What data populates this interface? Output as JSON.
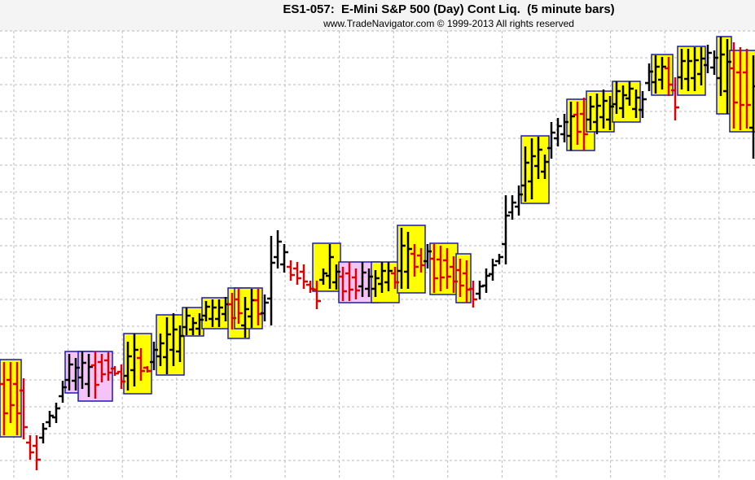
{
  "chart_data": {
    "type": "ohlc",
    "title": "ES1-057:  E-Mini S&P 500 (Day) Cont Liq.  (5 minute bars)",
    "subtitle": "www.TradeNavigator.com © 1999-2013 All rights reserved",
    "up_color": "#000000",
    "down_color": "#e00000",
    "box_border": "#1818c0",
    "ylim": [
      0,
      552
    ],
    "grid": true,
    "bars": [
      [
        118,
        145,
        55,
        82
      ],
      [
        123,
        145,
        70,
        92
      ],
      [
        118,
        145,
        55,
        82
      ],
      [
        110,
        125,
        50,
        65
      ],
      [
        46,
        55,
        25,
        34
      ],
      [
        42,
        55,
        12,
        25
      ],
      [
        52,
        70,
        45,
        63
      ],
      [
        71,
        85,
        65,
        79
      ],
      [
        77,
        95,
        70,
        88
      ],
      [
        103,
        122,
        95,
        114
      ],
      [
        123,
        155,
        110,
        142
      ],
      [
        122,
        150,
        110,
        138
      ],
      [
        126,
        158,
        112,
        144
      ],
      [
        118,
        155,
        102,
        139
      ],
      [
        141,
        158,
        100,
        117
      ],
      [
        145,
        155,
        120,
        130
      ],
      [
        147,
        157,
        122,
        132
      ],
      [
        137,
        140,
        128,
        131
      ],
      [
        133,
        142,
        112,
        121
      ],
      [
        128,
        170,
        110,
        152
      ],
      [
        135,
        180,
        115,
        160
      ],
      [
        150,
        162,
        122,
        134
      ],
      [
        138,
        140,
        132,
        134
      ],
      [
        145,
        170,
        135,
        160
      ],
      [
        152,
        180,
        140,
        168
      ],
      [
        151,
        200,
        130,
        179
      ],
      [
        160,
        205,
        140,
        185
      ],
      [
        158,
        190,
        145,
        177
      ],
      [
        188,
        212,
        178,
        202
      ],
      [
        185,
        200,
        178,
        193
      ],
      [
        186,
        205,
        178,
        197
      ],
      [
        202,
        220,
        195,
        213
      ],
      [
        198,
        222,
        188,
        212
      ],
      [
        198,
        222,
        188,
        212
      ],
      [
        204,
        225,
        195,
        216
      ],
      [
        216,
        230,
        185,
        199
      ],
      [
        222,
        235,
        192,
        205
      ],
      [
        190,
        225,
        175,
        210
      ],
      [
        201,
        235,
        187,
        221
      ],
      [
        221,
        235,
        190,
        204
      ],
      [
        205,
        228,
        195,
        218
      ],
      [
        223,
        300,
        190,
        267
      ],
      [
        274,
        307,
        260,
        293
      ],
      [
        265,
        290,
        255,
        280
      ],
      [
        262,
        270,
        245,
        252
      ],
      [
        260,
        268,
        240,
        248
      ],
      [
        256,
        265,
        235,
        244
      ],
      [
        240,
        245,
        230,
        235
      ],
      [
        234,
        245,
        210,
        220
      ],
      [
        246,
        260,
        240,
        254
      ],
      [
        251,
        290,
        235,
        274
      ],
      [
        243,
        265,
        234,
        256
      ],
      [
        250,
        262,
        220,
        232
      ],
      [
        254,
        268,
        220,
        234
      ],
      [
        249,
        260,
        222,
        233
      ],
      [
        238,
        268,
        225,
        255
      ],
      [
        235,
        260,
        225,
        250
      ],
      [
        235,
        258,
        225,
        248
      ],
      [
        241,
        268,
        230,
        257
      ],
      [
        243,
        268,
        232,
        257
      ],
      [
        254,
        262,
        235,
        243
      ],
      [
        257,
        310,
        235,
        288
      ],
      [
        256,
        305,
        235,
        284
      ],
      [
        278,
        290,
        250,
        262
      ],
      [
        276,
        285,
        255,
        264
      ],
      [
        269,
        290,
        260,
        281
      ],
      [
        272,
        290,
        230,
        248
      ],
      [
        271,
        288,
        232,
        249
      ],
      [
        270,
        285,
        235,
        250
      ],
      [
        262,
        275,
        230,
        244
      ],
      [
        258,
        272,
        225,
        239
      ],
      [
        254,
        270,
        218,
        234
      ],
      [
        235,
        245,
        212,
        222
      ],
      [
        229,
        245,
        222,
        238
      ],
      [
        239,
        260,
        230,
        251
      ],
      [
        253,
        272,
        245,
        264
      ],
      [
        269,
        278,
        265,
        274
      ],
      [
        290,
        350,
        265,
        325
      ],
      [
        329,
        350,
        320,
        341
      ],
      [
        336,
        362,
        325,
        351
      ],
      [
        362,
        410,
        342,
        390
      ],
      [
        367,
        420,
        345,
        398
      ],
      [
        386,
        422,
        370,
        406
      ],
      [
        379,
        400,
        370,
        391
      ],
      [
        408,
        440,
        395,
        427
      ],
      [
        420,
        445,
        410,
        435
      ],
      [
        425,
        450,
        415,
        440
      ],
      [
        423,
        465,
        405,
        447
      ],
      [
        449,
        465,
        412,
        428
      ],
      [
        450,
        470,
        405,
        425
      ],
      [
        443,
        472,
        430,
        459
      ],
      [
        440,
        475,
        425,
        460
      ],
      [
        446,
        480,
        432,
        466
      ],
      [
        443,
        472,
        430,
        459
      ],
      [
        462,
        490,
        450,
        478
      ],
      [
        457,
        485,
        445,
        473
      ],
      [
        469,
        490,
        460,
        481
      ],
      [
        456,
        480,
        445,
        470
      ],
      [
        455,
        478,
        445,
        468
      ],
      [
        488,
        512,
        478,
        502
      ],
      [
        489,
        522,
        475,
        508
      ],
      [
        492,
        520,
        480,
        508
      ],
      [
        506,
        520,
        472,
        486
      ],
      [
        479,
        495,
        442,
        458
      ],
      [
        495,
        530,
        480,
        515
      ],
      [
        493,
        530,
        478,
        515
      ],
      [
        494,
        532,
        478,
        516
      ],
      [
        499,
        532,
        485,
        518
      ],
      [
        510,
        535,
        500,
        525
      ],
      [
        507,
        528,
        498,
        519
      ],
      [
        494,
        545,
        472,
        523
      ],
      [
        478,
        542,
        450,
        514
      ],
      [
        506,
        538,
        432,
        464
      ],
      [
        501,
        532,
        430,
        461
      ],
      [
        501,
        530,
        432,
        461
      ],
      [
        433,
        522,
        395,
        484
      ]
    ],
    "boxes": [
      {
        "from": 0,
        "to": 2,
        "high": 148,
        "low": 53,
        "color": "#ffff00"
      },
      {
        "from": 10,
        "to": 13,
        "high": 158,
        "low": 107,
        "color": "#f4c4f8"
      },
      {
        "from": 12,
        "to": 16,
        "high": 158,
        "low": 97,
        "color": "#f4c4f8"
      },
      {
        "from": 19,
        "to": 22,
        "high": 180,
        "low": 106,
        "color": "#ffff00"
      },
      {
        "from": 24,
        "to": 27,
        "high": 203,
        "low": 129,
        "color": "#ffff00"
      },
      {
        "from": 28,
        "to": 30,
        "high": 212,
        "low": 177,
        "color": "#ffff00"
      },
      {
        "from": 31,
        "to": 34,
        "high": 224,
        "low": 186,
        "color": "#ffff00"
      },
      {
        "from": 35,
        "to": 37,
        "high": 236,
        "low": 174,
        "color": "#ffff00"
      },
      {
        "from": 36,
        "to": 39,
        "high": 236,
        "low": 186,
        "color": "#ffff00"
      },
      {
        "from": 48,
        "to": 51,
        "high": 291,
        "low": 232,
        "color": "#ffff00"
      },
      {
        "from": 52,
        "to": 57,
        "high": 268,
        "low": 218,
        "color": "#f4c4f8"
      },
      {
        "from": 57,
        "to": 60,
        "high": 268,
        "low": 218,
        "color": "#ffff00"
      },
      {
        "from": 61,
        "to": 64,
        "high": 313,
        "low": 230,
        "color": "#ffff00"
      },
      {
        "from": 66,
        "to": 69,
        "high": 291,
        "low": 228,
        "color": "#ffff00"
      },
      {
        "from": 70,
        "to": 71,
        "high": 278,
        "low": 218,
        "color": "#ffff00"
      },
      {
        "from": 80,
        "to": 83,
        "high": 423,
        "low": 340,
        "color": "#ffff00"
      },
      {
        "from": 87,
        "to": 90,
        "high": 468,
        "low": 405,
        "color": "#ffff00"
      },
      {
        "from": 90,
        "to": 93,
        "high": 478,
        "low": 428,
        "color": "#ffff00"
      },
      {
        "from": 94,
        "to": 97,
        "high": 490,
        "low": 440,
        "color": "#ffff00"
      },
      {
        "from": 100,
        "to": 102,
        "high": 523,
        "low": 473,
        "color": "#ffff00"
      },
      {
        "from": 104,
        "to": 107,
        "high": 533,
        "low": 473,
        "color": "#ffff00"
      },
      {
        "from": 110,
        "to": 111,
        "high": 545,
        "low": 450,
        "color": "#ffff00"
      },
      {
        "from": 112,
        "to": 115,
        "high": 528,
        "low": 428,
        "color": "#ffff00"
      }
    ]
  }
}
